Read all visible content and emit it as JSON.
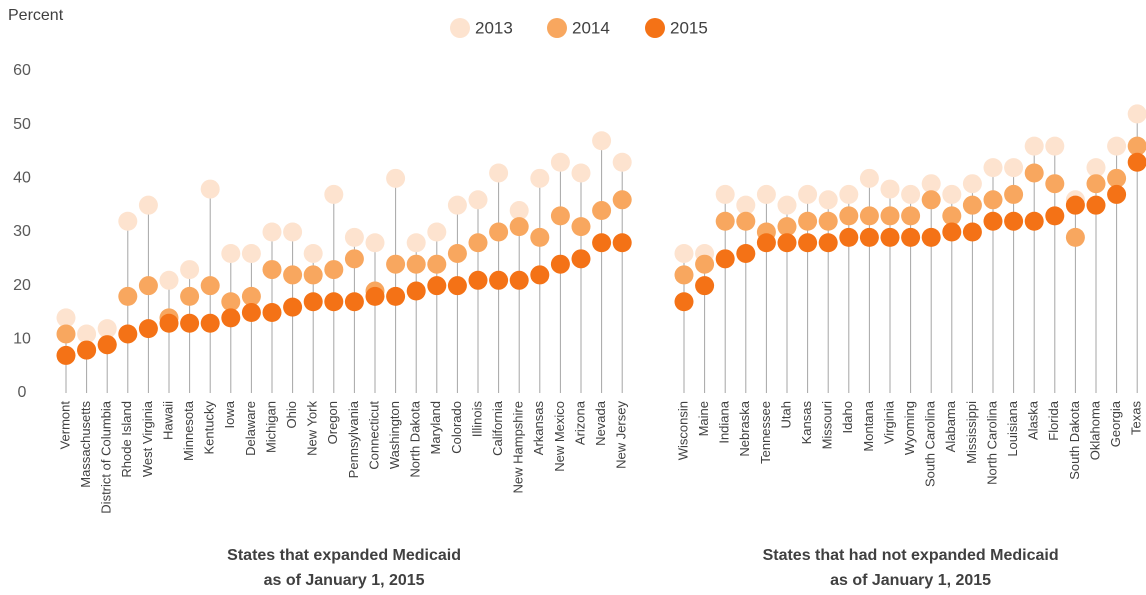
{
  "chart_data": {
    "type": "dot",
    "y_label": "Percent",
    "ylim": [
      0,
      60
    ],
    "yticks": [
      0,
      10,
      20,
      30,
      40,
      50,
      60
    ],
    "series": [
      {
        "name": "2013",
        "color": "#fde3cf"
      },
      {
        "name": "2014",
        "color": "#f8a75f"
      },
      {
        "name": "2015",
        "color": "#f47216"
      }
    ],
    "groups": [
      {
        "label": [
          "States that expanded Medicaid",
          "as of January 1, 2015"
        ],
        "categories": [
          "Vermont",
          "Massachusetts",
          "District of Columbia",
          "Rhode Island",
          "West Virginia",
          "Hawaii",
          "Minnesota",
          "Kentucky",
          "Iowa",
          "Delaware",
          "Michigan",
          "Ohio",
          "New York",
          "Oregon",
          "Pennsylvania",
          "Connecticut",
          "Washington",
          "North Dakota",
          "Maryland",
          "Colorado",
          "Illinois",
          "California",
          "New Hampshire",
          "Arkansas",
          "New Mexico",
          "Arizona",
          "Nevada",
          "New Jersey"
        ],
        "values": [
          [
            14,
            11,
            12,
            32,
            35,
            21,
            23,
            38,
            26,
            26,
            30,
            30,
            26,
            37,
            29,
            28,
            40,
            28,
            30,
            35,
            36,
            41,
            34,
            40,
            43,
            41,
            47,
            43
          ],
          [
            11,
            8,
            9,
            18,
            20,
            14,
            18,
            20,
            17,
            18,
            23,
            22,
            22,
            23,
            25,
            19,
            24,
            24,
            24,
            26,
            28,
            30,
            31,
            29,
            33,
            31,
            34,
            36
          ],
          [
            7,
            8,
            9,
            11,
            12,
            13,
            13,
            13,
            14,
            15,
            15,
            16,
            17,
            17,
            17,
            18,
            18,
            19,
            20,
            20,
            21,
            21,
            21,
            22,
            24,
            25,
            28,
            28
          ]
        ]
      },
      {
        "label": [
          "States that had not expanded Medicaid",
          "as of January 1, 2015"
        ],
        "categories": [
          "Wisconsin",
          "Maine",
          "Indiana",
          "Nebraska",
          "Tennessee",
          "Utah",
          "Kansas",
          "Missouri",
          "Idaho",
          "Montana",
          "Virginia",
          "Wyoming",
          "South Carolina",
          "Alabama",
          "Mississippi",
          "North Carolina",
          "Louisiana",
          "Alaska",
          "Florida",
          "South Dakota",
          "Oklahoma",
          "Georgia",
          "Texas"
        ],
        "values": [
          [
            26,
            26,
            37,
            35,
            37,
            35,
            37,
            36,
            37,
            40,
            38,
            37,
            39,
            37,
            39,
            42,
            42,
            46,
            46,
            36,
            42,
            46,
            52
          ],
          [
            22,
            24,
            32,
            32,
            30,
            31,
            32,
            32,
            33,
            33,
            33,
            33,
            36,
            33,
            35,
            36,
            37,
            41,
            39,
            29,
            39,
            40,
            46
          ],
          [
            17,
            20,
            25,
            26,
            28,
            28,
            28,
            28,
            29,
            29,
            29,
            29,
            29,
            30,
            30,
            32,
            32,
            32,
            33,
            35,
            35,
            37,
            43
          ]
        ]
      }
    ]
  }
}
